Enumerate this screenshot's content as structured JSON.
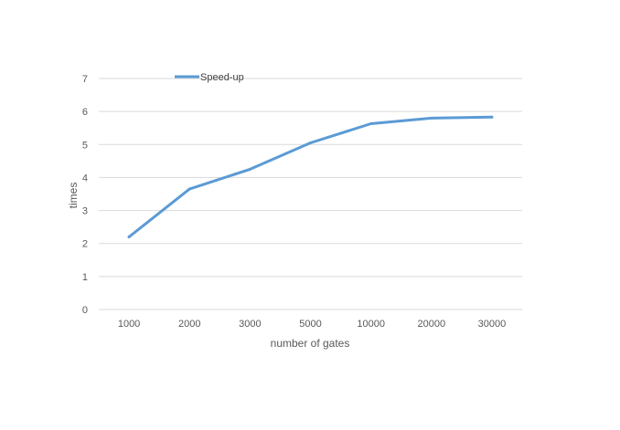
{
  "chart_data": {
    "type": "line",
    "categories": [
      "1000",
      "2000",
      "3000",
      "5000",
      "10000",
      "20000",
      "30000"
    ],
    "series": [
      {
        "name": "Speed-up",
        "values": [
          2.2,
          3.65,
          4.25,
          5.05,
          5.63,
          5.8,
          5.83
        ],
        "color": "#5b9bd5"
      }
    ],
    "title": "",
    "xlabel": "number of gates",
    "ylabel": "times",
    "ylim": [
      0,
      7
    ],
    "yticks": [
      "0",
      "1",
      "2",
      "3",
      "4",
      "5",
      "6",
      "7"
    ],
    "grid": true,
    "legend": "top-left"
  }
}
